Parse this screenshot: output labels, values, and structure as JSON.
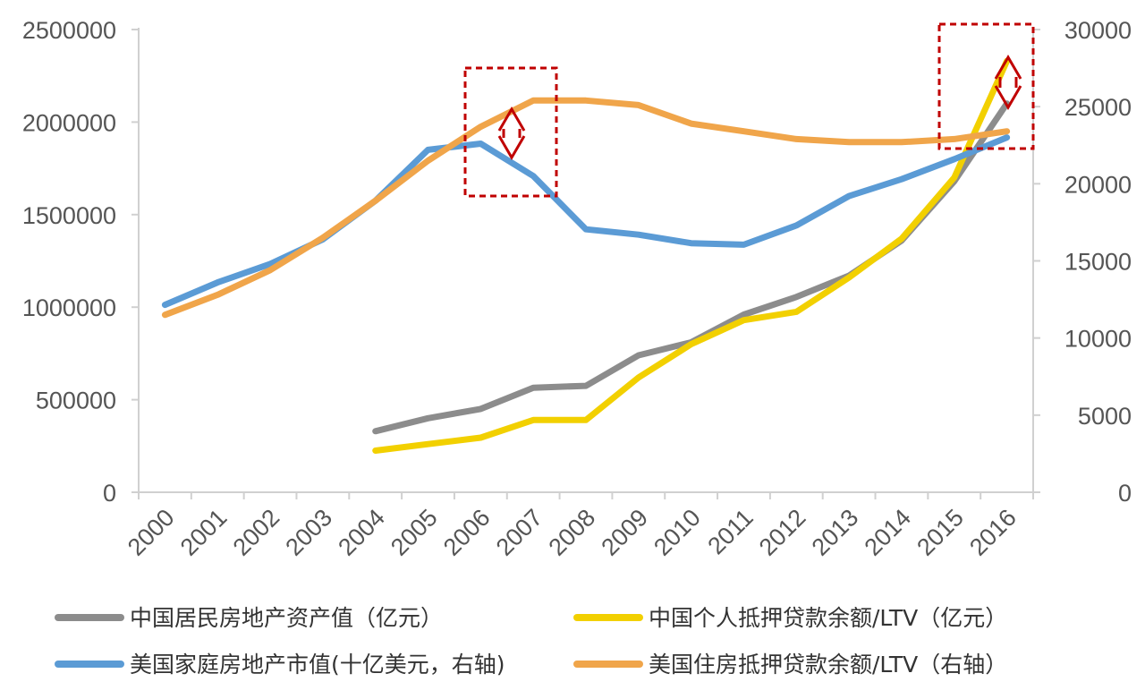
{
  "chart_data": {
    "type": "line",
    "categories": [
      "2000",
      "2001",
      "2002",
      "2003",
      "2004",
      "2005",
      "2006",
      "2007",
      "2008",
      "2009",
      "2010",
      "2011",
      "2012",
      "2013",
      "2014",
      "2015",
      "2016"
    ],
    "left_axis": {
      "min": 0,
      "max": 2500000,
      "ticks": [
        "0",
        "500000",
        "1000000",
        "1500000",
        "2000000",
        "2500000"
      ]
    },
    "right_axis": {
      "min": 0,
      "max": 30000,
      "ticks": [
        "0",
        "5000",
        "10000",
        "15000",
        "20000",
        "25000",
        "30000"
      ]
    },
    "series": [
      {
        "name": "中国居民房地产资产值（亿元）",
        "axis": "left",
        "color": "#8c8c8c",
        "values": [
          null,
          null,
          null,
          null,
          330000,
          400000,
          450000,
          565000,
          575000,
          740000,
          810000,
          960000,
          1055000,
          1170000,
          1360000,
          1680000,
          2100000
        ]
      },
      {
        "name": "中国个人抵押贷款余额/LTV（亿元）",
        "axis": "left",
        "color": "#f2d000",
        "values": [
          null,
          null,
          null,
          null,
          225000,
          260000,
          295000,
          390000,
          390000,
          620000,
          800000,
          930000,
          975000,
          1160000,
          1370000,
          1700000,
          2330000
        ]
      },
      {
        "name": "美国家庭房地产市值(十亿美元，右轴)",
        "axis": "right",
        "color": "#5b9bd5",
        "values": [
          12150,
          13600,
          14800,
          16400,
          18900,
          22200,
          22600,
          20500,
          17050,
          16700,
          16150,
          16050,
          17300,
          19200,
          20300,
          21600,
          23000
        ]
      },
      {
        "name": "美国住房抵押贷款余额/LTV（右轴）",
        "axis": "right",
        "color": "#f0a54a",
        "values": [
          11500,
          12800,
          14400,
          16500,
          18900,
          21500,
          23700,
          25400,
          25400,
          25100,
          23900,
          23400,
          22900,
          22700,
          22700,
          22900,
          23400
        ]
      }
    ],
    "annotations": [
      {
        "type": "dashed-box-double-arrow",
        "color": "#c00000",
        "around": "2006-2007"
      },
      {
        "type": "dashed-box-double-arrow",
        "color": "#c00000",
        "around": "2016"
      }
    ],
    "grid": false,
    "legend_position": "bottom"
  }
}
